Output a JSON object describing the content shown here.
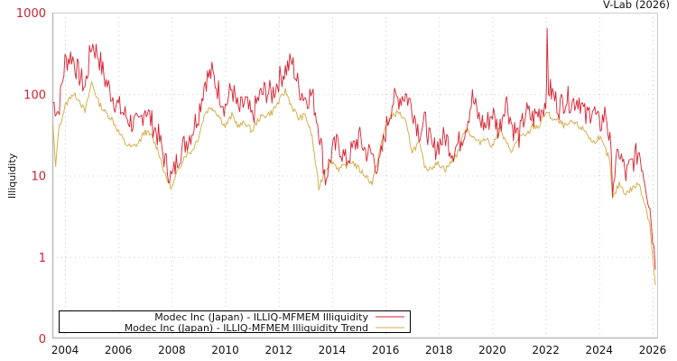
{
  "credit": "V-Lab (2026)",
  "chart_data": {
    "type": "line",
    "title": "",
    "xlabel": "",
    "ylabel": "Illiquidity",
    "yscale": "log",
    "ylim": [
      0.1,
      1000
    ],
    "y_ticks": [
      {
        "value": 1000,
        "label": "1000"
      },
      {
        "value": 100,
        "label": "100"
      },
      {
        "value": 10,
        "label": "10"
      },
      {
        "value": 1,
        "label": "1"
      },
      {
        "value": 0.1,
        "label": "0"
      }
    ],
    "x_ticks": [
      "2004",
      "2006",
      "2008",
      "2010",
      "2012",
      "2014",
      "2016",
      "2018",
      "2020",
      "2022",
      "2024",
      "2026"
    ],
    "xlim": [
      2003.5,
      2026.2
    ],
    "grid": true,
    "legend_position": "bottom-left inside",
    "series": [
      {
        "name": "Modec Inc (Japan) - ILLIQ-MFMEM Illiquidity",
        "color": "#d62030",
        "x": [
          2003.55,
          2003.75,
          2004.0,
          2004.25,
          2004.5,
          2004.75,
          2005.0,
          2005.25,
          2005.5,
          2005.75,
          2006.0,
          2006.25,
          2006.5,
          2006.75,
          2007.0,
          2007.25,
          2007.5,
          2007.75,
          2008.0,
          2008.25,
          2008.5,
          2008.75,
          2009.0,
          2009.25,
          2009.5,
          2009.75,
          2010.0,
          2010.25,
          2010.5,
          2010.75,
          2011.0,
          2011.25,
          2011.5,
          2011.75,
          2012.0,
          2012.25,
          2012.5,
          2012.75,
          2013.0,
          2013.25,
          2013.5,
          2013.75,
          2014.0,
          2014.25,
          2014.5,
          2014.75,
          2015.0,
          2015.25,
          2015.5,
          2015.75,
          2016.0,
          2016.25,
          2016.5,
          2016.75,
          2017.0,
          2017.25,
          2017.5,
          2017.75,
          2018.0,
          2018.25,
          2018.5,
          2018.75,
          2019.0,
          2019.25,
          2019.5,
          2019.75,
          2020.0,
          2020.25,
          2020.5,
          2020.75,
          2021.0,
          2021.25,
          2021.5,
          2021.75,
          2022.0,
          2022.05,
          2022.1,
          2022.25,
          2022.5,
          2022.75,
          2023.0,
          2023.25,
          2023.5,
          2023.75,
          2024.0,
          2024.25,
          2024.4,
          2024.5,
          2024.75,
          2025.0,
          2025.25,
          2025.5,
          2025.75,
          2025.9,
          2026.0,
          2026.1
        ],
        "values": [
          80,
          60,
          250,
          300,
          180,
          120,
          420,
          300,
          150,
          100,
          70,
          55,
          45,
          40,
          70,
          45,
          30,
          15,
          9,
          18,
          25,
          35,
          60,
          150,
          180,
          110,
          70,
          120,
          60,
          80,
          50,
          90,
          110,
          100,
          150,
          200,
          250,
          120,
          90,
          100,
          40,
          9,
          20,
          25,
          15,
          20,
          30,
          20,
          18,
          12,
          35,
          80,
          90,
          100,
          70,
          35,
          45,
          20,
          25,
          30,
          20,
          25,
          40,
          90,
          50,
          40,
          60,
          35,
          90,
          40,
          30,
          60,
          50,
          60,
          80,
          450,
          120,
          100,
          70,
          90,
          80,
          90,
          50,
          70,
          40,
          60,
          25,
          8,
          20,
          10,
          15,
          20,
          8,
          4,
          2,
          0.7
        ]
      },
      {
        "name": "Modec Inc (Japan) - ILLIQ-MFMEM Illiquidity Trend",
        "color": "#d4b050",
        "x": [
          2003.55,
          2003.65,
          2003.75,
          2004.0,
          2004.25,
          2004.5,
          2004.75,
          2005.0,
          2005.25,
          2005.5,
          2005.75,
          2006.0,
          2006.25,
          2006.5,
          2006.75,
          2007.0,
          2007.25,
          2007.5,
          2007.75,
          2008.0,
          2008.25,
          2008.5,
          2008.75,
          2009.0,
          2009.25,
          2009.5,
          2009.75,
          2010.0,
          2010.25,
          2010.5,
          2010.75,
          2011.0,
          2011.25,
          2011.5,
          2011.75,
          2012.0,
          2012.25,
          2012.5,
          2012.75,
          2013.0,
          2013.25,
          2013.5,
          2013.75,
          2014.0,
          2014.25,
          2014.5,
          2014.75,
          2015.0,
          2015.25,
          2015.5,
          2015.75,
          2016.0,
          2016.25,
          2016.5,
          2016.75,
          2017.0,
          2017.25,
          2017.5,
          2017.75,
          2018.0,
          2018.25,
          2018.5,
          2018.75,
          2019.0,
          2019.25,
          2019.5,
          2019.75,
          2020.0,
          2020.25,
          2020.5,
          2020.75,
          2021.0,
          2021.25,
          2021.5,
          2021.75,
          2022.0,
          2022.25,
          2022.5,
          2022.75,
          2023.0,
          2023.25,
          2023.5,
          2023.75,
          2024.0,
          2024.25,
          2024.4,
          2024.5,
          2024.75,
          2025.0,
          2025.25,
          2025.5,
          2025.75,
          2025.9,
          2026.0,
          2026.1
        ],
        "values": [
          40,
          12,
          35,
          70,
          100,
          90,
          60,
          140,
          80,
          60,
          50,
          35,
          25,
          22,
          25,
          35,
          30,
          20,
          10,
          7,
          12,
          18,
          20,
          30,
          60,
          70,
          55,
          40,
          55,
          40,
          45,
          35,
          50,
          55,
          60,
          80,
          110,
          70,
          50,
          55,
          30,
          7,
          12,
          15,
          12,
          13,
          15,
          12,
          10,
          8,
          18,
          40,
          55,
          60,
          45,
          20,
          25,
          12,
          13,
          14,
          12,
          15,
          20,
          40,
          30,
          25,
          30,
          22,
          40,
          25,
          20,
          30,
          30,
          40,
          40,
          60,
          50,
          45,
          40,
          45,
          40,
          35,
          25,
          30,
          20,
          15,
          5,
          8,
          6,
          7,
          8,
          4,
          2.5,
          1.0,
          0.45
        ]
      }
    ]
  },
  "legend": {
    "items": [
      {
        "label": "Modec Inc (Japan) - ILLIQ-MFMEM Illiquidity",
        "color": "#d62030"
      },
      {
        "label": "Modec Inc (Japan) - ILLIQ-MFMEM Illiquidity Trend",
        "color": "#d4b050"
      }
    ]
  }
}
